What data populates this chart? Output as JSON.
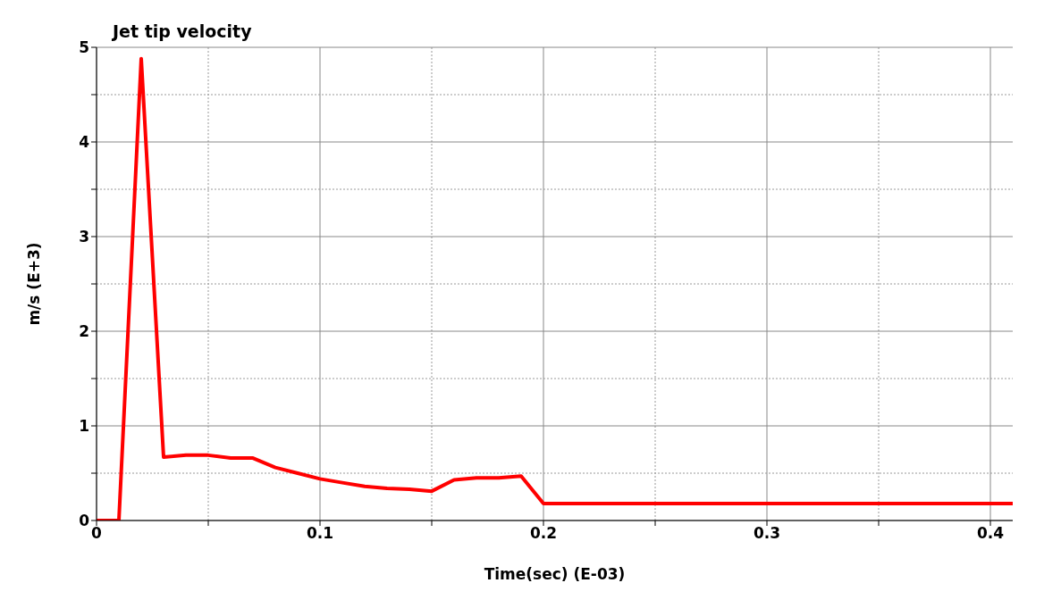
{
  "chart_data": {
    "type": "line",
    "title": "Jet tip velocity",
    "xlabel": "Time(sec) (E-03)",
    "ylabel": "m/s (E+3)",
    "x": [
      0,
      0.01,
      0.02,
      0.03,
      0.04,
      0.05,
      0.06,
      0.07,
      0.08,
      0.09,
      0.1,
      0.11,
      0.12,
      0.13,
      0.14,
      0.15,
      0.16,
      0.17,
      0.18,
      0.19,
      0.2,
      0.41
    ],
    "series": [
      {
        "color": "#ff0000",
        "values": [
          0,
          0,
          4.88,
          0.67,
          0.69,
          0.69,
          0.66,
          0.66,
          0.56,
          0.5,
          0.44,
          0.4,
          0.36,
          0.34,
          0.33,
          0.31,
          0.43,
          0.45,
          0.45,
          0.47,
          0.18,
          0.18
        ]
      }
    ],
    "xlim": [
      0,
      0.41
    ],
    "ylim": [
      0,
      5
    ],
    "xticks": [
      0,
      {
        "value": 0.05,
        "label": null
      },
      0.1,
      {
        "value": 0.15,
        "label": null
      },
      0.2,
      {
        "value": 0.25,
        "label": null
      },
      0.3,
      {
        "value": 0.35,
        "label": null
      },
      0.4
    ],
    "yticks": [
      0,
      {
        "value": 0.5,
        "label": null
      },
      1,
      {
        "value": 1.5,
        "label": null
      },
      2,
      {
        "value": 2.5,
        "label": null
      },
      3,
      {
        "value": 3.5,
        "label": null
      },
      4,
      {
        "value": 4.5,
        "label": null
      },
      5
    ],
    "grid": true,
    "marker": "none",
    "line_style": "solid"
  }
}
